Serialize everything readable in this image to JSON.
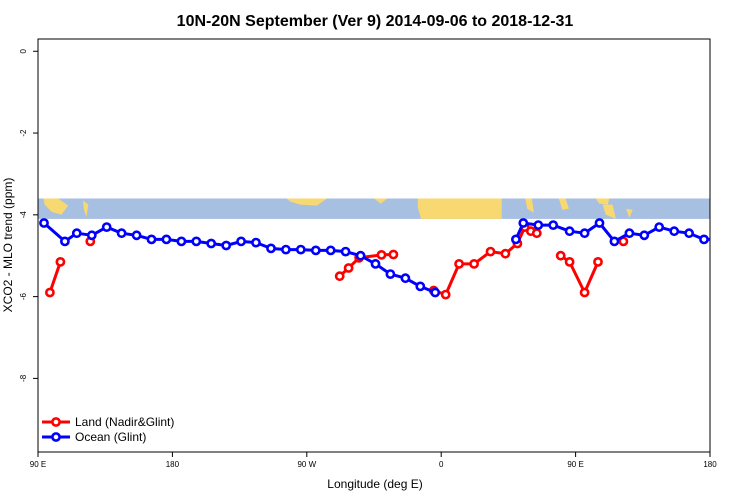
{
  "chart_data": {
    "type": "line",
    "title": "10N-20N September (Ver 9)   2014-09-06 to 2018-12-31",
    "xlabel": "Longitude (deg E)",
    "ylabel": "XCO2 - MLO trend (ppm)",
    "xlim": [
      90,
      540
    ],
    "ylim": [
      -9.8,
      0.3
    ],
    "x_ticks": [
      {
        "value": 90,
        "label": "90 E"
      },
      {
        "value": 180,
        "label": "180"
      },
      {
        "value": 270,
        "label": "90 W"
      },
      {
        "value": 360,
        "label": "0"
      },
      {
        "value": 450,
        "label": "90 E"
      },
      {
        "value": 540,
        "label": "180"
      }
    ],
    "y_ticks": [
      {
        "value": 0,
        "label": "0"
      },
      {
        "value": -2,
        "label": "-2"
      },
      {
        "value": -4,
        "label": "-4"
      },
      {
        "value": -6,
        "label": "-6"
      },
      {
        "value": -8,
        "label": "-8"
      }
    ],
    "map_band": {
      "y_top": -3.6,
      "y_bottom": -4.1,
      "ocean_color": "#a7bfe0",
      "land_color": "#f8d870"
    },
    "legend_position": "bottom-left",
    "series": [
      {
        "name": "Land (Nadir&Glint)",
        "color": "#ff0000",
        "segments": [
          [
            [
              98,
              -5.9
            ],
            [
              105,
              -5.15
            ]
          ],
          [
            [
              125,
              -4.65
            ]
          ],
          [
            [
              292,
              -5.5
            ],
            [
              298,
              -5.3
            ],
            [
              305,
              -5.05
            ],
            [
              320,
              -4.98
            ],
            [
              328,
              -4.97
            ]
          ],
          [
            [
              355,
              -5.85
            ],
            [
              363,
              -5.95
            ],
            [
              372,
              -5.2
            ],
            [
              382,
              -5.2
            ],
            [
              393,
              -4.9
            ],
            [
              403,
              -4.95
            ],
            [
              411,
              -4.7
            ],
            [
              416,
              -4.3
            ],
            [
              420,
              -4.4
            ],
            [
              424,
              -4.45
            ]
          ],
          [
            [
              440,
              -5.0
            ],
            [
              446,
              -5.15
            ],
            [
              456,
              -5.9
            ],
            [
              465,
              -5.15
            ]
          ],
          [
            [
              482,
              -4.65
            ]
          ]
        ]
      },
      {
        "name": "Ocean (Glint)",
        "color": "#0000ff",
        "segments": [
          [
            [
              94,
              -4.2
            ],
            [
              108,
              -4.65
            ],
            [
              116,
              -4.45
            ],
            [
              126,
              -4.5
            ],
            [
              136,
              -4.3
            ],
            [
              146,
              -4.45
            ],
            [
              156,
              -4.5
            ],
            [
              166,
              -4.6
            ],
            [
              176,
              -4.6
            ],
            [
              186,
              -4.65
            ],
            [
              196,
              -4.65
            ],
            [
              206,
              -4.7
            ],
            [
              216,
              -4.75
            ],
            [
              226,
              -4.65
            ],
            [
              236,
              -4.68
            ],
            [
              246,
              -4.82
            ],
            [
              256,
              -4.85
            ],
            [
              266,
              -4.85
            ],
            [
              276,
              -4.87
            ],
            [
              286,
              -4.87
            ],
            [
              296,
              -4.9
            ],
            [
              306,
              -5.0
            ],
            [
              316,
              -5.2
            ],
            [
              326,
              -5.45
            ],
            [
              336,
              -5.55
            ],
            [
              346,
              -5.75
            ],
            [
              356,
              -5.9
            ]
          ],
          [
            [
              410,
              -4.6
            ],
            [
              415,
              -4.2
            ],
            [
              425,
              -4.25
            ],
            [
              435,
              -4.25
            ],
            [
              446,
              -4.4
            ],
            [
              456,
              -4.45
            ],
            [
              466,
              -4.2
            ],
            [
              476,
              -4.65
            ],
            [
              486,
              -4.45
            ],
            [
              496,
              -4.5
            ],
            [
              506,
              -4.3
            ],
            [
              516,
              -4.4
            ],
            [
              526,
              -4.45
            ],
            [
              536,
              -4.6
            ],
            [
              546,
              -4.6
            ]
          ]
        ]
      }
    ]
  }
}
